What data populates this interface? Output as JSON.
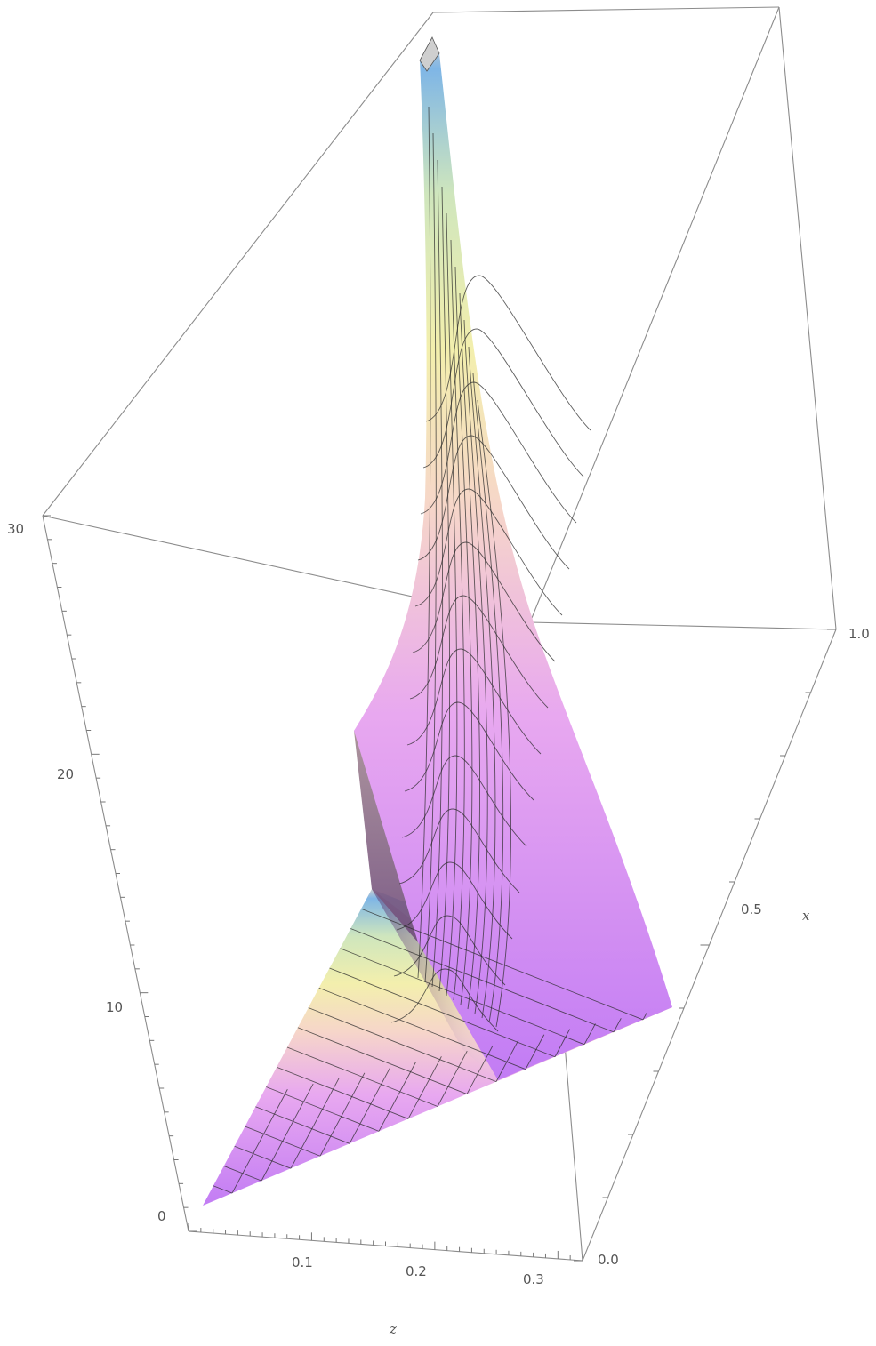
{
  "chart_data": {
    "type": "surface3d",
    "title": "",
    "axes": {
      "z_axis": {
        "label": "z",
        "range": [
          0,
          0.32
        ],
        "ticks": [
          "0.1",
          "0.2",
          "0.3"
        ]
      },
      "x_axis": {
        "label": "x",
        "range": [
          0.0,
          1.0
        ],
        "ticks": [
          "0.0",
          "0.5",
          "1.0"
        ]
      },
      "value_axis": {
        "label": "",
        "range": [
          0,
          30
        ],
        "ticks": [
          "0",
          "10",
          "20",
          "30"
        ]
      }
    },
    "surface_domain": "triangular region: 0 <= x <= 1, 0 <= z <= 0.32 (x <= z/0.32)",
    "surface_description_values": {
      "peak_height": 30,
      "peak_location": {
        "x": 1.0,
        "z": 0.32
      },
      "ridge_x_profile": [
        0.0,
        0.1,
        0.2,
        0.3,
        0.4,
        0.5,
        0.6,
        0.7,
        0.8,
        0.9,
        1.0
      ]
    },
    "colormap": [
      "#c27cf4",
      "#e8a8f0",
      "#fbe3c4",
      "#f2f0a8",
      "#d6e8b8",
      "#8fc3ea",
      "#c9c9c9"
    ],
    "mesh": true,
    "box": true
  }
}
